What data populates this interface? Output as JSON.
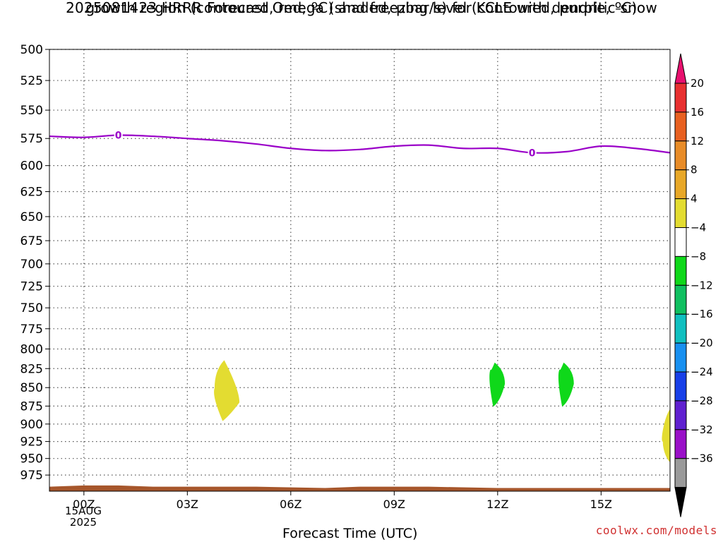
{
  "title_line1": "2025081423 HRRR Forecast Omega (shaded, μbar/s) for KCLE with dendritic snow",
  "title_line2": "growth region (contoured, red, ºC) and freezing level (contoured, purple, ºC)",
  "credit": "coolwx.com/models",
  "chart_data": {
    "type": "heatmap",
    "title": "2025081423 HRRR Forecast Omega (shaded, μbar/s) for KCLE with dendritic snow growth region (contoured, red, ºC) and freezing level (contoured, purple, ºC)",
    "xlabel": "Forecast Time (UTC)",
    "ylabel": "",
    "x_hours_range": [
      -1,
      17
    ],
    "x_ticks": [
      {
        "hour": 0,
        "label": "00Z"
      },
      {
        "hour": 3,
        "label": "03Z"
      },
      {
        "hour": 6,
        "label": "06Z"
      },
      {
        "hour": 9,
        "label": "09Z"
      },
      {
        "hour": 12,
        "label": "12Z"
      },
      {
        "hour": 15,
        "label": "15Z"
      }
    ],
    "x_date_label": [
      "15AUG",
      "2025"
    ],
    "y_scale": "log-pressure (inverted)",
    "ylim": [
      500,
      1000
    ],
    "y_ticks": [
      500,
      525,
      550,
      575,
      600,
      625,
      650,
      675,
      700,
      725,
      750,
      775,
      800,
      825,
      850,
      875,
      900,
      925,
      950,
      975
    ],
    "grid": true,
    "freezing_level": {
      "label": "0",
      "color": "#9a00c8",
      "label_hours": [
        1,
        13
      ],
      "points": [
        [
          -1,
          573
        ],
        [
          0,
          574
        ],
        [
          1,
          572
        ],
        [
          2,
          573
        ],
        [
          3,
          575
        ],
        [
          4,
          577
        ],
        [
          5,
          580
        ],
        [
          6,
          584
        ],
        [
          7,
          586
        ],
        [
          8,
          585
        ],
        [
          9,
          582
        ],
        [
          10,
          581
        ],
        [
          11,
          584
        ],
        [
          12,
          584
        ],
        [
          13,
          588
        ],
        [
          14,
          587
        ],
        [
          15,
          582
        ],
        [
          16,
          584
        ],
        [
          17,
          588
        ]
      ]
    },
    "omega_features": [
      {
        "category": "4 to 8",
        "color": "#e3dc31",
        "hour_span": [
          3.8,
          4.5
        ],
        "pressure_span": [
          815,
          895
        ],
        "peak": 870
      },
      {
        "category": "-8 to -4",
        "color": "#0fd81a",
        "hour_span": [
          11.8,
          12.2
        ],
        "pressure_span": [
          818,
          875
        ],
        "peak": 845
      },
      {
        "category": "-8 to -4",
        "color": "#0fd81a",
        "hour_span": [
          13.8,
          14.2
        ],
        "pressure_span": [
          818,
          875
        ],
        "peak": 845
      },
      {
        "category": "4 to 8",
        "color": "#e3dc31",
        "hour_span": [
          16.8,
          17
        ],
        "pressure_span": [
          880,
          955
        ],
        "peak": 925
      }
    ],
    "ground_color": "#a6562b",
    "surface_pressure": [
      [
        -1,
        993
      ],
      [
        0,
        991
      ],
      [
        1,
        991
      ],
      [
        2,
        993
      ],
      [
        3,
        993
      ],
      [
        5,
        993
      ],
      [
        7,
        995
      ],
      [
        8,
        993
      ],
      [
        10,
        993
      ],
      [
        12,
        995
      ],
      [
        15,
        995
      ],
      [
        17,
        995
      ]
    ],
    "colorbar": {
      "ticks": [
        "20",
        "16",
        "12",
        "8",
        "4",
        "−4",
        "−8",
        "−12",
        "−16",
        "−20",
        "−24",
        "−28",
        "−32",
        "−36"
      ],
      "colors": [
        "#e8106e",
        "#e83030",
        "#e86020",
        "#e88c28",
        "#e8a828",
        "#e3dc31",
        "#ffffff",
        "#0fd81a",
        "#10c060",
        "#10c0c0",
        "#1890f0",
        "#1840e8",
        "#6020d0",
        "#9a10c8",
        "#9a9a9a",
        "#000000"
      ]
    }
  }
}
